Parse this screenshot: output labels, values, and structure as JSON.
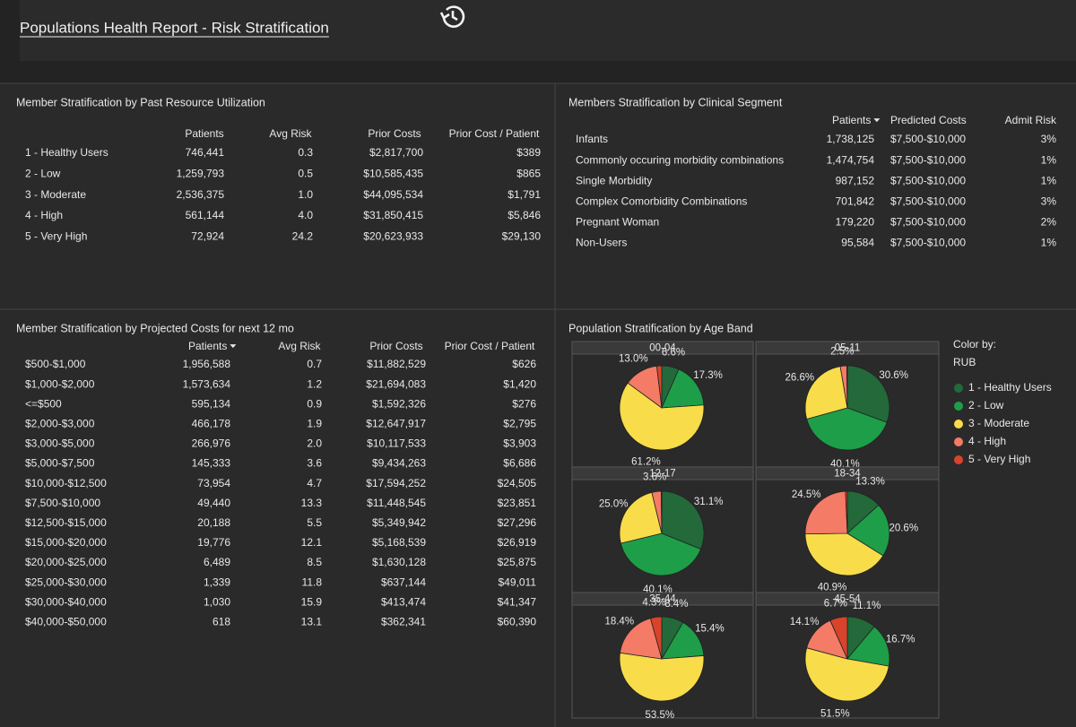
{
  "header": {
    "title": "Populations Health Report - Risk Stratification"
  },
  "resource": {
    "title": "Member Stratification by Past Resource Utilization",
    "columns": [
      "Patients",
      "Avg Risk",
      "Prior  Costs",
      "Prior Cost / Patient"
    ],
    "rows": [
      [
        "1 - Healthy Users",
        "746,441",
        "0.3",
        "$2,817,700",
        "$389"
      ],
      [
        "2 - Low",
        "1,259,793",
        "0.5",
        "$10,585,435",
        "$865"
      ],
      [
        "3 - Moderate",
        "2,536,375",
        "1.0",
        "$44,095,534",
        "$1,791"
      ],
      [
        "4 - High",
        "561,144",
        "4.0",
        "$31,850,415",
        "$5,846"
      ],
      [
        "5 - Very High",
        "72,924",
        "24.2",
        "$20,623,933",
        "$29,130"
      ]
    ]
  },
  "clinical": {
    "title": "Members Stratification by Clinical Segment",
    "columns": [
      "Patients",
      "Predicted Costs",
      "Admit Risk"
    ],
    "rows": [
      [
        "Infants",
        "1,738,125",
        "$7,500-$10,000",
        "3%"
      ],
      [
        "Commonly occuring morbidity combinations",
        "1,474,754",
        "$7,500-$10,000",
        "1%"
      ],
      [
        "Single Morbidity",
        "987,152",
        "$7,500-$10,000",
        "1%"
      ],
      [
        "Complex Comorbidity Combinations",
        "701,842",
        "$7,500-$10,000",
        "3%"
      ],
      [
        "Pregnant Woman",
        "179,220",
        "$7,500-$10,000",
        "2%"
      ],
      [
        "Non-Users",
        "95,584",
        "$7,500-$10,000",
        "1%"
      ]
    ]
  },
  "projected": {
    "title": "Member Stratification by Projected Costs for next 12 mo",
    "columns": [
      "Patients",
      "Avg Risk",
      "Prior  Costs",
      "Prior Cost / Patient"
    ],
    "rows": [
      [
        "$500-$1,000",
        "1,956,588",
        "0.7",
        "$11,882,529",
        "$626"
      ],
      [
        "$1,000-$2,000",
        "1,573,634",
        "1.2",
        "$21,694,083",
        "$1,420"
      ],
      [
        "<=$500",
        "595,134",
        "0.9",
        "$1,592,326",
        "$276"
      ],
      [
        "$2,000-$3,000",
        "466,178",
        "1.9",
        "$12,647,917",
        "$2,795"
      ],
      [
        "$3,000-$5,000",
        "266,976",
        "2.0",
        "$10,117,533",
        "$3,903"
      ],
      [
        "$5,000-$7,500",
        "145,333",
        "3.6",
        "$9,434,263",
        "$6,686"
      ],
      [
        "$10,000-$12,500",
        "73,954",
        "4.7",
        "$17,594,252",
        "$24,505"
      ],
      [
        "$7,500-$10,000",
        "49,440",
        "13.3",
        "$11,448,545",
        "$23,851"
      ],
      [
        "$12,500-$15,000",
        "20,188",
        "5.5",
        "$5,349,942",
        "$27,296"
      ],
      [
        "$15,000-$20,000",
        "19,776",
        "12.1",
        "$5,168,539",
        "$26,919"
      ],
      [
        "$20,000-$25,000",
        "6,489",
        "8.5",
        "$1,630,128",
        "$25,875"
      ],
      [
        "$25,000-$30,000",
        "1,339",
        "11.8",
        "$637,144",
        "$49,011"
      ],
      [
        "$30,000-$40,000",
        "1,030",
        "15.9",
        "$413,474",
        "$41,347"
      ],
      [
        "$40,000-$50,000",
        "618",
        "13.1",
        "$362,341",
        "$60,390"
      ]
    ]
  },
  "chart_data": {
    "type": "pie",
    "title": "Population Stratification by Age Band",
    "legend_title": "Color by:",
    "legend_subtitle": "RUB",
    "categories": [
      "1 - Healthy Users",
      "2 - Low",
      "3 - Moderate",
      "4 - High",
      "5 - Very High"
    ],
    "colors": [
      "#23693a",
      "#1e9e48",
      "#f8dc4a",
      "#f47b66",
      "#d8432c"
    ],
    "panels": [
      {
        "title": "00-04",
        "values": [
          6.6,
          17.3,
          61.2,
          13.0,
          1.9
        ],
        "value_labels": [
          "6.6%",
          "17.3%",
          "61.2%",
          "13.0%",
          null
        ]
      },
      {
        "title": "05-11",
        "values": [
          30.6,
          40.1,
          26.6,
          2.5,
          0.2
        ],
        "value_labels": [
          "30.6%",
          "40.1%",
          "26.6%",
          "2.5%",
          null
        ]
      },
      {
        "title": "12-17",
        "values": [
          31.1,
          40.1,
          25.0,
          3.6,
          0.2
        ],
        "value_labels": [
          "31.1%",
          "40.1%",
          "25.0%",
          "3.6%",
          null
        ]
      },
      {
        "title": "18-34",
        "values": [
          13.3,
          20.6,
          40.9,
          24.5,
          0.7
        ],
        "value_labels": [
          "13.3%",
          "20.6%",
          "40.9%",
          "24.5%",
          null
        ]
      },
      {
        "title": "35-44",
        "values": [
          8.4,
          15.4,
          53.5,
          18.4,
          4.3
        ],
        "value_labels": [
          "8.4%",
          "15.4%",
          "53.5%",
          "18.4%",
          "4.3%"
        ]
      },
      {
        "title": "45-54",
        "values": [
          11.1,
          16.7,
          51.5,
          14.1,
          6.7
        ],
        "value_labels": [
          "11.1%",
          "16.7%",
          "51.5%",
          "14.1%",
          "6.7%"
        ]
      }
    ]
  }
}
